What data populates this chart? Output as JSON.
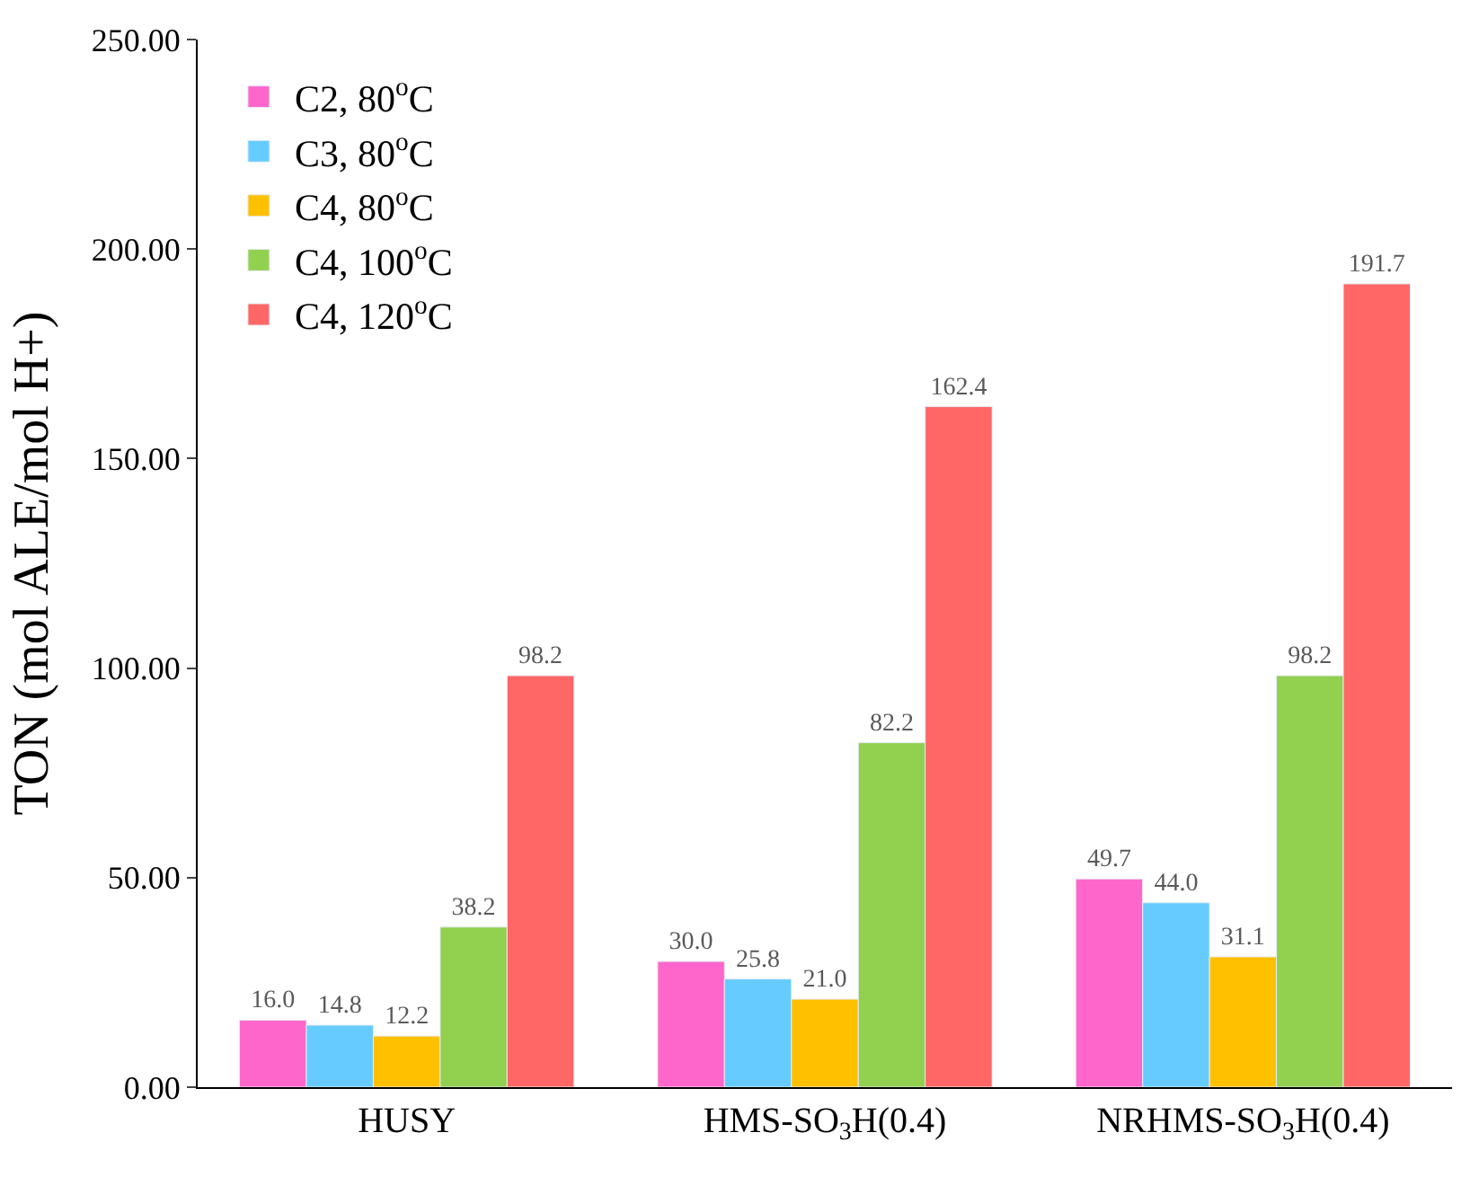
{
  "chart_data": {
    "type": "bar",
    "ylabel": "TON (mol ALE/mol H+)",
    "categories": [
      "HUSY",
      "HMS-SO$_{3}$H(0.4)",
      "NRHMS-SO$_{3}$H(0.4)"
    ],
    "series": [
      {
        "name": "C2, 80$^{o}$C",
        "color": "#ff66cc",
        "values": [
          16.0,
          30.0,
          49.7
        ],
        "value_labels": [
          "16.0",
          "30.0",
          "49.7"
        ]
      },
      {
        "name": "C3, 80$^{o}$C",
        "color": "#66ccff",
        "values": [
          14.8,
          25.8,
          44.0
        ],
        "value_labels": [
          "14.8",
          "25.8",
          "44.0"
        ]
      },
      {
        "name": "C4, 80$^{o}$C",
        "color": "#ffc000",
        "values": [
          12.2,
          21.0,
          31.1
        ],
        "value_labels": [
          "12.2",
          "21.0",
          "31.1"
        ]
      },
      {
        "name": "C4, 100$^{o}$C",
        "color": "#92d050",
        "values": [
          38.2,
          82.2,
          98.2
        ],
        "value_labels": [
          "38.2",
          "82.2",
          "98.2"
        ]
      },
      {
        "name": "C4, 120$^{o}$C",
        "color": "#ff6666",
        "values": [
          98.2,
          162.4,
          191.7
        ],
        "value_labels": [
          "98.2",
          "162.4",
          "191.7"
        ]
      }
    ],
    "ylim": [
      0,
      250
    ],
    "yticks": [
      {
        "value": 0,
        "label": "0.00"
      },
      {
        "value": 50,
        "label": "50.00"
      },
      {
        "value": 100,
        "label": "100.00"
      },
      {
        "value": 150,
        "label": "150.00"
      },
      {
        "value": 200,
        "label": "200.00"
      },
      {
        "value": 250,
        "label": "250.00"
      }
    ],
    "legend": "top left"
  }
}
